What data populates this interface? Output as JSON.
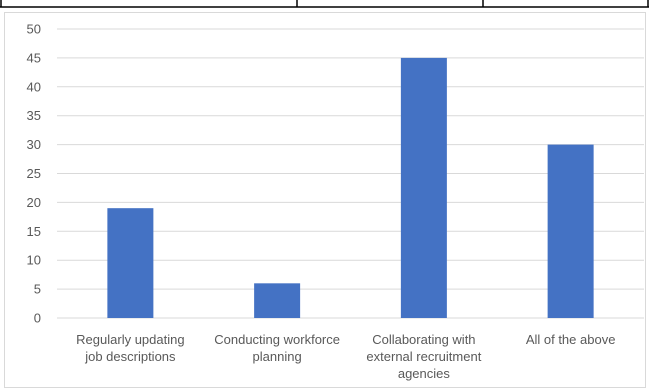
{
  "chart_data": {
    "type": "bar",
    "categories": [
      [
        "Regularly updating",
        "job descriptions"
      ],
      [
        "Conducting workforce",
        "planning"
      ],
      [
        "Collaborating with",
        "external recruitment",
        "agencies"
      ],
      [
        "All of the above"
      ]
    ],
    "values": [
      19,
      6,
      45,
      30
    ],
    "ylim": [
      0,
      50
    ],
    "yticks": [
      0,
      5,
      10,
      15,
      20,
      25,
      30,
      35,
      40,
      45,
      50
    ],
    "grid": true,
    "legend": "none",
    "bar_color": "#4472c4",
    "grid_color": "#d9d9d9"
  }
}
